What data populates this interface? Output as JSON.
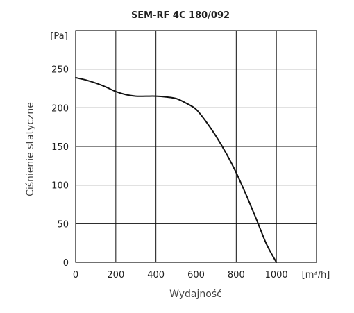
{
  "chart_data": {
    "type": "line",
    "title": "SEM-RF 4C 180/092",
    "xlabel": "Wydajność",
    "ylabel": "Ciśnienie statyczne",
    "x_unit": "[m³/h]",
    "y_unit": "[Pa]",
    "xlim": [
      0,
      1200
    ],
    "ylim": [
      0,
      300
    ],
    "x_ticks": [
      0,
      200,
      400,
      600,
      800,
      1000
    ],
    "y_ticks": [
      0,
      50,
      100,
      150,
      200,
      250
    ],
    "grid": true,
    "series": [
      {
        "x": [
          0,
          50,
          100,
          150,
          200,
          250,
          300,
          350,
          400,
          450,
          500,
          550,
          600,
          650,
          700,
          750,
          800,
          850,
          900,
          950,
          1000
        ],
        "y": [
          239,
          236,
          232,
          227,
          221,
          217,
          215,
          215,
          215,
          214,
          212,
          206,
          198,
          182,
          163,
          141,
          116,
          87,
          56,
          24,
          0
        ]
      }
    ]
  },
  "style": {
    "line_color": "#111111",
    "grid_color": "#111111",
    "text_color": "#222222",
    "label_color": "#444444"
  }
}
